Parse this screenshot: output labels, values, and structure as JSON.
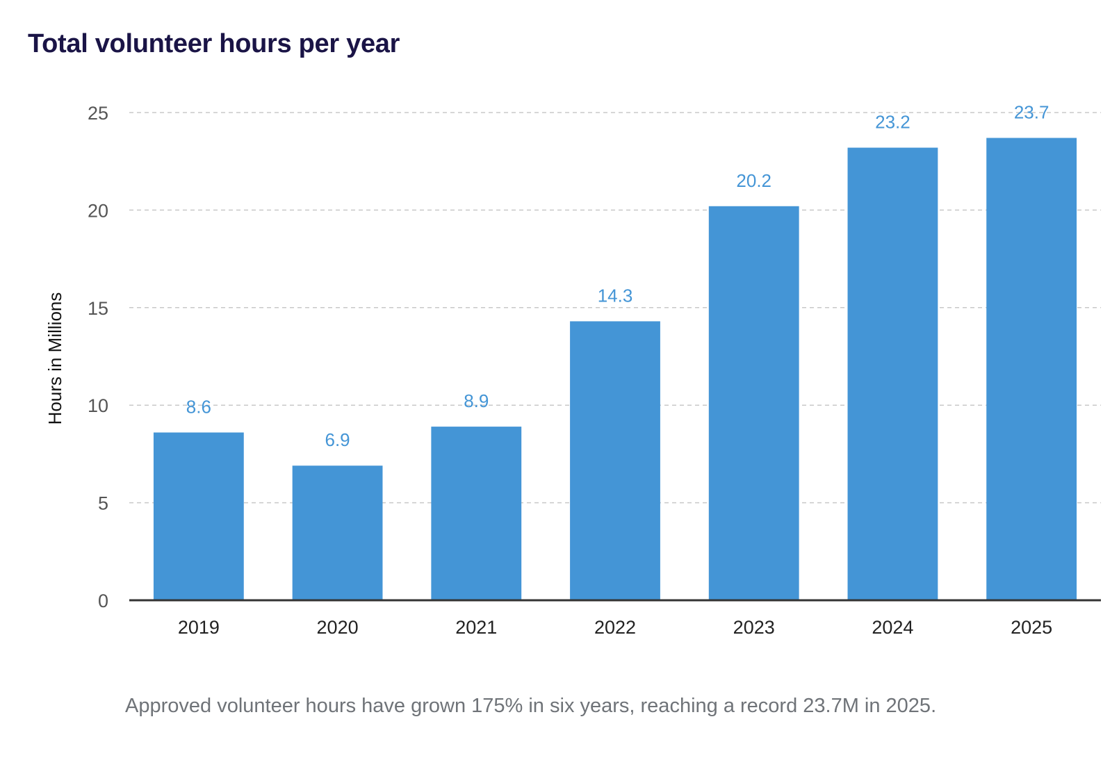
{
  "chart_data": {
    "type": "bar",
    "title": "Total volunteer hours per year",
    "xlabel": "",
    "ylabel": "Hours in Millions",
    "categories": [
      "2019",
      "2020",
      "2021",
      "2022",
      "2023",
      "2024",
      "2025"
    ],
    "values": [
      8.6,
      6.9,
      8.9,
      14.3,
      20.2,
      23.2,
      23.7
    ],
    "value_labels": [
      "8.6",
      "6.9",
      "8.9",
      "14.3",
      "20.2",
      "23.2",
      "23.7"
    ],
    "ylim": [
      0,
      25
    ],
    "yticks": [
      0,
      5,
      10,
      15,
      20,
      25
    ],
    "grid": true,
    "legend": "none",
    "bar_color": "#4495d6",
    "label_color": "#4495d6",
    "caption": "Approved volunteer hours have grown 175% in six years, reaching a record 23.7M in 2025."
  }
}
